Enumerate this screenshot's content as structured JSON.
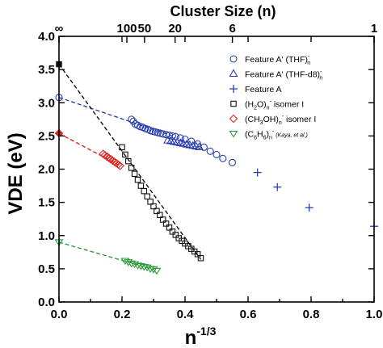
{
  "chart_data": {
    "type": "scatter",
    "xlabel": "n",
    "xlabel_sup": "-1/3",
    "ylabel": "VDE (eV)",
    "top_axis_label": "Cluster Size (n)",
    "xlim": [
      0.0,
      1.0
    ],
    "ylim": [
      0.0,
      4.0
    ],
    "x_ticks": [
      "0.0",
      "0.2",
      "0.4",
      "0.6",
      "0.8",
      "1.0"
    ],
    "y_ticks": [
      "0.0",
      "0.5",
      "1.0",
      "1.5",
      "2.0",
      "2.5",
      "3.0",
      "3.5",
      "4.0"
    ],
    "top_ticks": [
      {
        "label": "∞",
        "x": 0.0
      },
      {
        "label": "100",
        "x": 0.2154
      },
      {
        "label": "50",
        "x": 0.2714
      },
      {
        "label": "20",
        "x": 0.3684
      },
      {
        "label": "6",
        "x": 0.5503
      },
      {
        "label": "1",
        "x": 1.0
      }
    ],
    "grid": false,
    "legend_position": "top-right",
    "series": [
      {
        "name": "Feature A' (THF)",
        "name_sub": "n",
        "name_sup": "-",
        "marker": "circle",
        "color": "#2b3fb0",
        "x": [
          0.23,
          0.236,
          0.242,
          0.25,
          0.258,
          0.266,
          0.274,
          0.282,
          0.29,
          0.298,
          0.306,
          0.314,
          0.322,
          0.33,
          0.34,
          0.35,
          0.36,
          0.37,
          0.385,
          0.4,
          0.42,
          0.44,
          0.46,
          0.48,
          0.5,
          0.52,
          0.55
        ],
        "y": [
          2.75,
          2.72,
          2.68,
          2.66,
          2.64,
          2.63,
          2.61,
          2.6,
          2.58,
          2.57,
          2.56,
          2.55,
          2.54,
          2.53,
          2.52,
          2.51,
          2.5,
          2.49,
          2.47,
          2.45,
          2.42,
          2.38,
          2.33,
          2.27,
          2.22,
          2.16,
          2.1
        ]
      },
      {
        "name": "Feature A' (THF-d8)",
        "name_sub": "n",
        "name_sup": "-",
        "marker": "triangle-up",
        "color": "#2b3fb0",
        "x": [
          0.345,
          0.355,
          0.365,
          0.375,
          0.385,
          0.395,
          0.405,
          0.415,
          0.425,
          0.435,
          0.445
        ],
        "y": [
          2.43,
          2.42,
          2.41,
          2.4,
          2.39,
          2.38,
          2.37,
          2.36,
          2.35,
          2.34,
          2.33
        ]
      },
      {
        "name": "Feature A",
        "marker": "plus",
        "color": "#2b3fb0",
        "x": [
          0.63,
          0.693,
          0.794,
          1.0
        ],
        "y": [
          1.95,
          1.73,
          1.42,
          1.14
        ]
      },
      {
        "name": "(H2O) isomer I",
        "name_parts": [
          "(H",
          "2",
          "O)",
          "n",
          "-",
          " isomer I"
        ],
        "marker": "square",
        "color": "#111111",
        "x": [
          0.0,
          0.2,
          0.21,
          0.22,
          0.23,
          0.24,
          0.25,
          0.26,
          0.27,
          0.28,
          0.29,
          0.3,
          0.31,
          0.32,
          0.33,
          0.34,
          0.35,
          0.36,
          0.37,
          0.38,
          0.39,
          0.4,
          0.41,
          0.42,
          0.43,
          0.44,
          0.45
        ],
        "y": [
          3.58,
          2.33,
          2.22,
          2.12,
          2.02,
          1.93,
          1.84,
          1.75,
          1.67,
          1.59,
          1.51,
          1.44,
          1.37,
          1.31,
          1.24,
          1.18,
          1.12,
          1.06,
          1.01,
          0.96,
          0.92,
          0.88,
          0.84,
          0.8,
          0.76,
          0.72,
          0.66
        ]
      },
      {
        "name": "(CH3OH) isomer I",
        "name_parts": [
          "(CH",
          "3",
          "OH)",
          "n",
          "-",
          " isomer I"
        ],
        "marker": "diamond",
        "color": "#e3221d",
        "x": [
          0.0,
          0.14,
          0.146,
          0.152,
          0.158,
          0.164,
          0.17,
          0.176,
          0.182,
          0.188,
          0.194
        ],
        "y": [
          2.54,
          2.23,
          2.21,
          2.19,
          2.17,
          2.15,
          2.13,
          2.11,
          2.09,
          2.07,
          2.05
        ]
      },
      {
        "name": "(C6H6) (Kaya, et al.)",
        "name_parts": [
          "(C",
          "6",
          "H",
          "6",
          ")",
          "n",
          "-"
        ],
        "name_note": "(Kaya, et al.)",
        "marker": "triangle-down",
        "color": "#2e9a3a",
        "x": [
          0.0,
          0.21,
          0.22,
          0.23,
          0.24,
          0.25,
          0.26,
          0.27,
          0.28,
          0.29,
          0.3,
          0.31
        ],
        "y": [
          0.9,
          0.62,
          0.6,
          0.58,
          0.57,
          0.55,
          0.54,
          0.53,
          0.52,
          0.5,
          0.49,
          0.47
        ]
      }
    ],
    "fit_lines": [
      {
        "color": "#2b3fb0",
        "x": [
          0.0,
          0.36
        ],
        "y": [
          3.08,
          2.5
        ]
      },
      {
        "color": "#111111",
        "x": [
          0.0,
          0.45
        ],
        "y": [
          3.58,
          0.64
        ]
      },
      {
        "color": "#e3221d",
        "x": [
          0.0,
          0.19
        ],
        "y": [
          2.54,
          2.06
        ]
      },
      {
        "color": "#2e9a3a",
        "x": [
          0.0,
          0.3
        ],
        "y": [
          0.9,
          0.49
        ]
      }
    ]
  }
}
